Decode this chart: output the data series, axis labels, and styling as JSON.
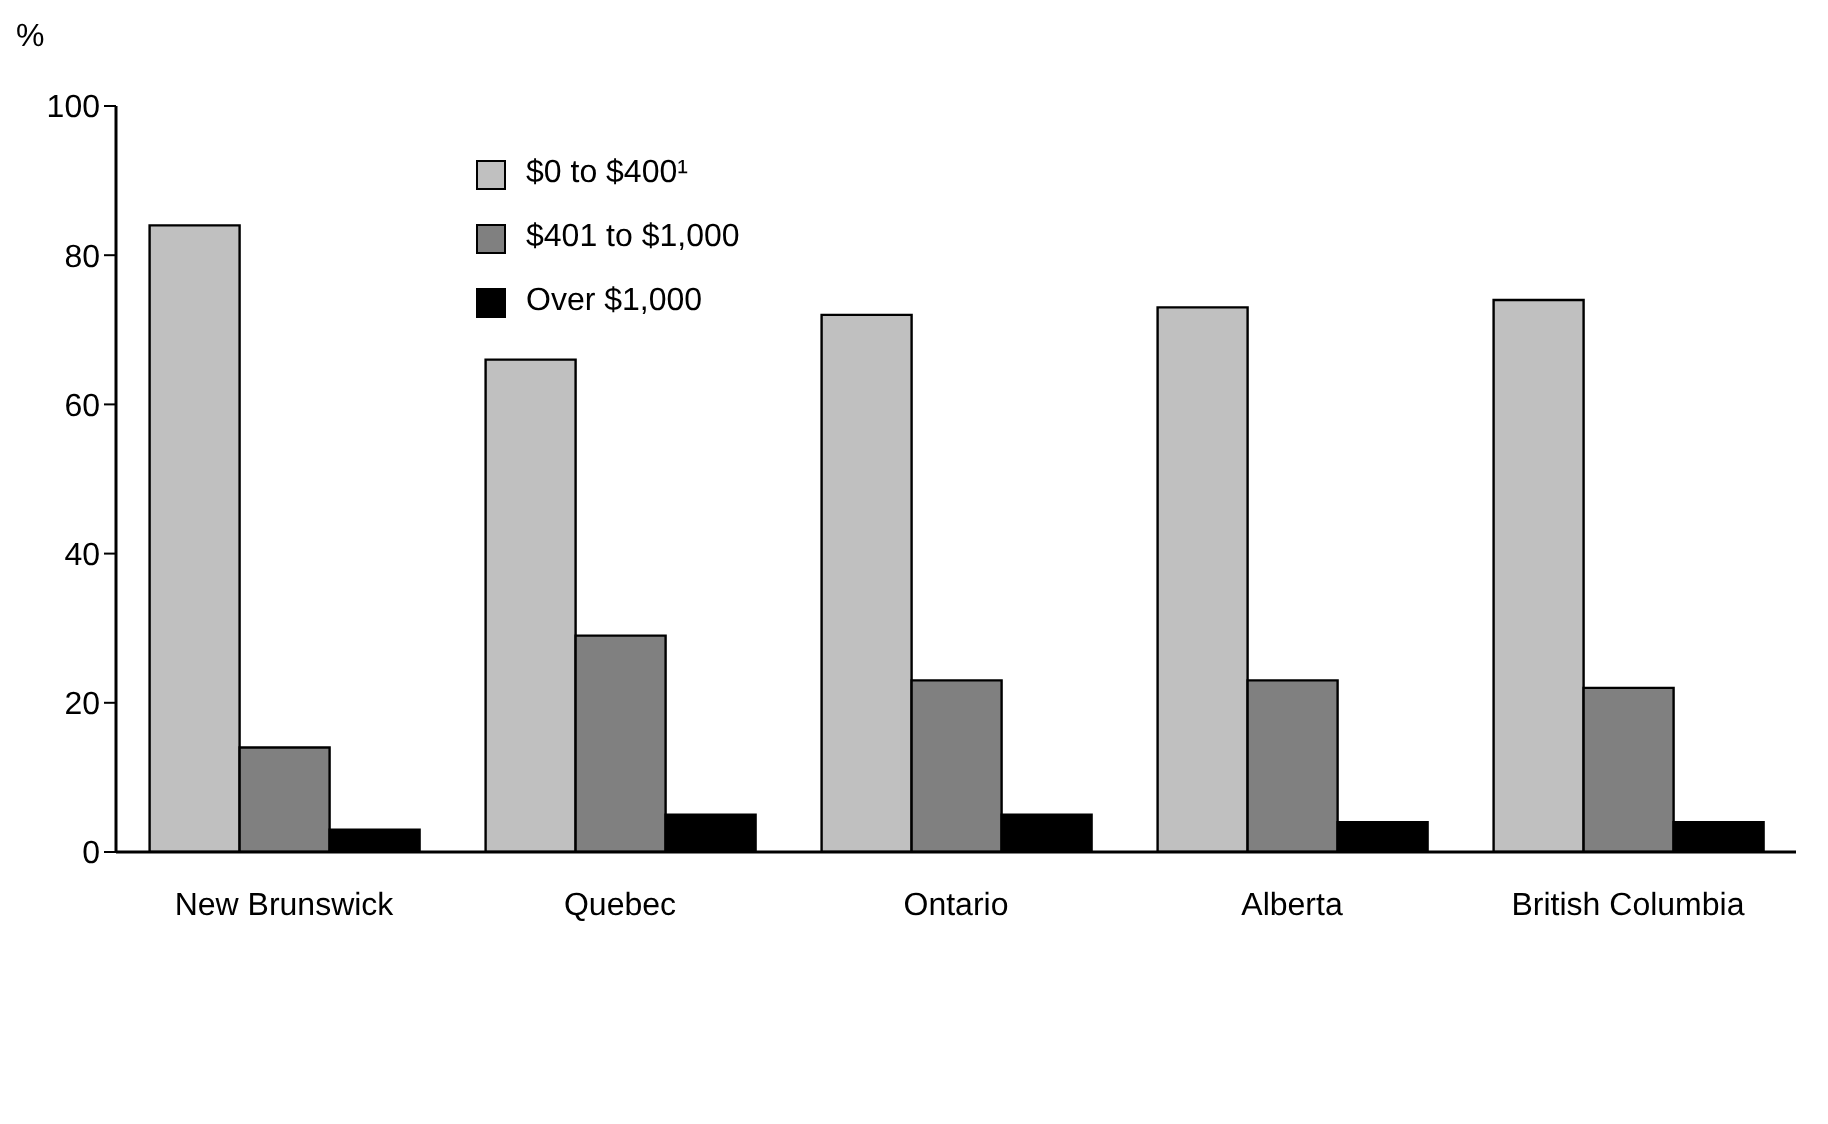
{
  "chart_data": {
    "type": "bar",
    "ylabel": "%",
    "categories": [
      "New Brunswick",
      "Quebec",
      "Ontario",
      "Alberta",
      "British Columbia"
    ],
    "series": [
      {
        "name": "$0 to $400¹",
        "color": "#c0c0c0",
        "values": [
          84,
          66,
          72,
          73,
          74
        ]
      },
      {
        "name": "$401 to $1,000",
        "color": "#808080",
        "values": [
          14,
          29,
          23,
          23,
          22
        ]
      },
      {
        "name": "Over $1,000",
        "color": "#000000",
        "values": [
          3,
          5,
          5,
          4,
          4
        ]
      }
    ],
    "ylim": [
      0,
      100
    ],
    "yticks": [
      0,
      20,
      40,
      60,
      80,
      100
    ],
    "grid": false,
    "legend": "top left"
  }
}
